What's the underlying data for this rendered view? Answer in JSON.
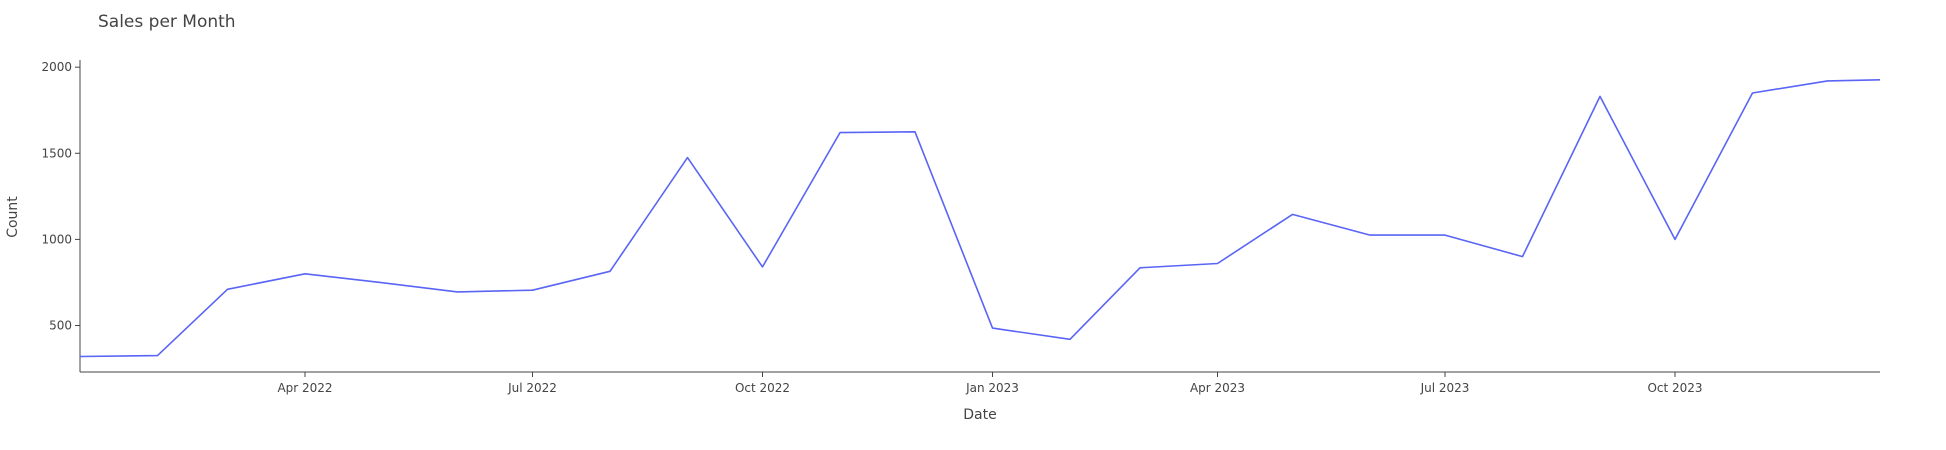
{
  "chart_data": {
    "type": "line",
    "title": "Sales per Month",
    "xlabel": "Date",
    "ylabel": "Count",
    "x": [
      "2022-01-01",
      "2022-02-01",
      "2022-03-01",
      "2022-04-01",
      "2022-05-01",
      "2022-06-01",
      "2022-07-01",
      "2022-08-01",
      "2022-09-01",
      "2022-10-01",
      "2022-11-01",
      "2022-12-01",
      "2023-01-01",
      "2023-02-01",
      "2023-03-01",
      "2023-04-01",
      "2023-05-01",
      "2023-06-01",
      "2023-07-01",
      "2023-08-01",
      "2023-09-01",
      "2023-10-01",
      "2023-11-01",
      "2023-12-01",
      "2024-01-01"
    ],
    "series": [
      {
        "values": [
          320,
          325,
          710,
          800,
          750,
          695,
          705,
          815,
          1475,
          840,
          1620,
          1625,
          485,
          420,
          835,
          860,
          1145,
          1025,
          1025,
          900,
          1830,
          1000,
          1850,
          1920,
          1930
        ]
      }
    ],
    "xlim": [
      "2022-01-01",
      "2023-12-22"
    ],
    "ylim": [
      230,
      2030
    ],
    "x_ticks": [
      {
        "date": "2022-04-01",
        "label": "Apr 2022"
      },
      {
        "date": "2022-07-01",
        "label": "Jul 2022"
      },
      {
        "date": "2022-10-01",
        "label": "Oct 2022"
      },
      {
        "date": "2023-01-01",
        "label": "Jan 2023"
      },
      {
        "date": "2023-04-01",
        "label": "Apr 2023"
      },
      {
        "date": "2023-07-01",
        "label": "Jul 2023"
      },
      {
        "date": "2023-10-01",
        "label": "Oct 2023"
      }
    ],
    "y_ticks": [
      500,
      1000,
      1500,
      2000
    ],
    "line_color": "#5a64f5",
    "grid": false
  }
}
